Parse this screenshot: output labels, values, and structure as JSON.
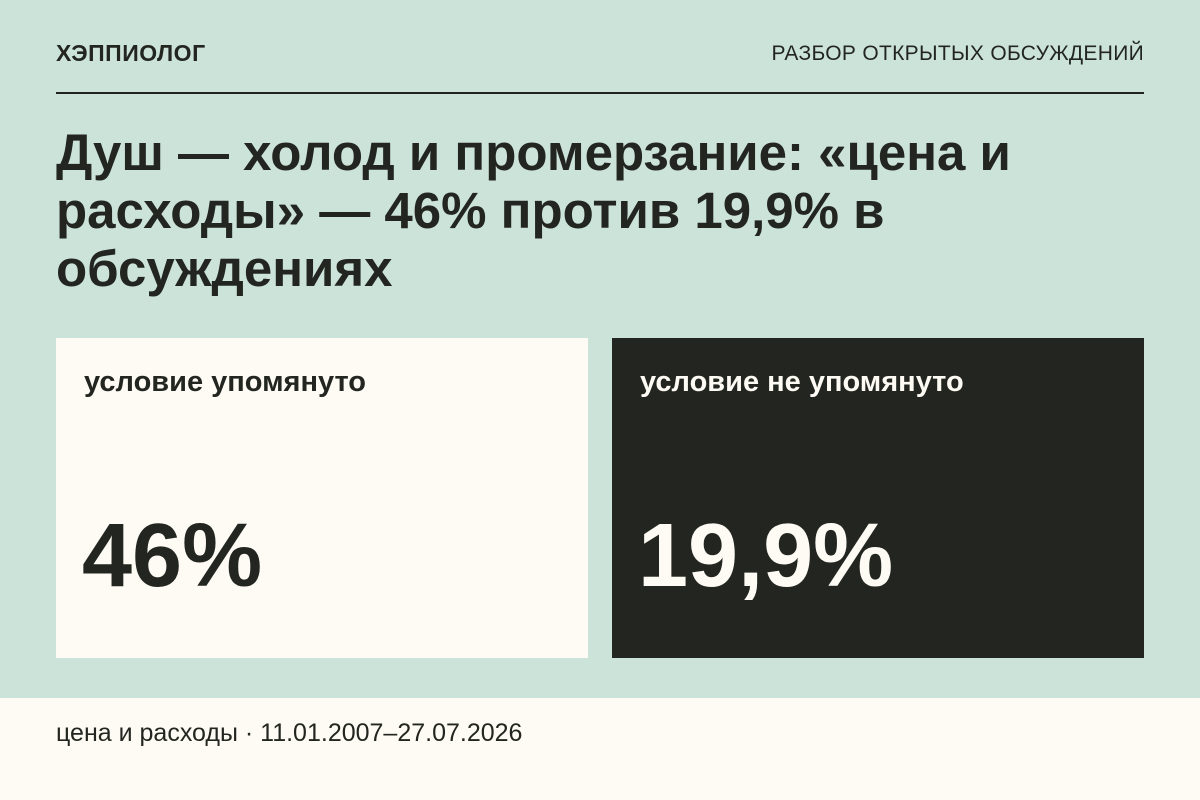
{
  "header": {
    "brand": "ХЭППИОЛОГ",
    "section": "РАЗБОР ОТКРЫТЫХ ОБСУЖДЕНИЙ"
  },
  "headline": "Душ — холод и промерзание: «цена и расходы» — 46% против 19,9% в обсуждениях",
  "comparison": {
    "mentioned": {
      "label": "условие упомянуто",
      "value": "46%"
    },
    "not_mentioned": {
      "label": "условие не упомянуто",
      "value": "19,9%"
    }
  },
  "footer": {
    "text": "цена и расходы · 11.01.2007–27.07.2026"
  },
  "colors": {
    "background": "#cce3da",
    "panel_light": "#fdfbf4",
    "panel_dark": "#232620",
    "text_dark": "#232620",
    "text_light": "#fdfbf4"
  }
}
